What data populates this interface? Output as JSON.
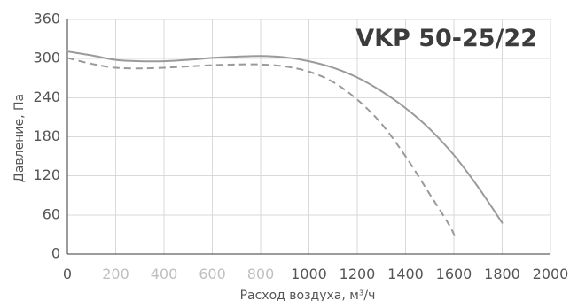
{
  "chart_data": {
    "type": "line",
    "title": "VKP 50-25/22",
    "xlabel": "Расход воздуха, м³/ч",
    "ylabel": "Давление, Па",
    "xlim": [
      0,
      2000
    ],
    "ylim": [
      0,
      360
    ],
    "xticks": [
      "0",
      "200",
      "400",
      "600",
      "800",
      "1000",
      "1200",
      "1400",
      "1600",
      "1800",
      "2000"
    ],
    "yticks": [
      "0",
      "60",
      "120",
      "180",
      "240",
      "300",
      "360"
    ],
    "grid": true,
    "legend": "none",
    "series": [
      {
        "style": "solid",
        "color": "#9a9a9a",
        "points": [
          {
            "x": 0,
            "y": 311
          },
          {
            "x": 100,
            "y": 305
          },
          {
            "x": 200,
            "y": 298
          },
          {
            "x": 300,
            "y": 296
          },
          {
            "x": 400,
            "y": 296
          },
          {
            "x": 500,
            "y": 298
          },
          {
            "x": 600,
            "y": 301
          },
          {
            "x": 700,
            "y": 303
          },
          {
            "x": 800,
            "y": 304
          },
          {
            "x": 900,
            "y": 302
          },
          {
            "x": 1000,
            "y": 296
          },
          {
            "x": 1100,
            "y": 286
          },
          {
            "x": 1200,
            "y": 271
          },
          {
            "x": 1300,
            "y": 250
          },
          {
            "x": 1400,
            "y": 224
          },
          {
            "x": 1500,
            "y": 192
          },
          {
            "x": 1600,
            "y": 152
          },
          {
            "x": 1700,
            "y": 103
          },
          {
            "x": 1800,
            "y": 48
          }
        ]
      },
      {
        "style": "dashed",
        "color": "#9a9a9a",
        "points": [
          {
            "x": 0,
            "y": 301
          },
          {
            "x": 100,
            "y": 292
          },
          {
            "x": 200,
            "y": 286
          },
          {
            "x": 300,
            "y": 285
          },
          {
            "x": 400,
            "y": 286
          },
          {
            "x": 500,
            "y": 288
          },
          {
            "x": 600,
            "y": 290
          },
          {
            "x": 700,
            "y": 291
          },
          {
            "x": 800,
            "y": 291
          },
          {
            "x": 900,
            "y": 288
          },
          {
            "x": 1000,
            "y": 280
          },
          {
            "x": 1100,
            "y": 264
          },
          {
            "x": 1200,
            "y": 237
          },
          {
            "x": 1300,
            "y": 200
          },
          {
            "x": 1400,
            "y": 150
          },
          {
            "x": 1500,
            "y": 92
          },
          {
            "x": 1580,
            "y": 45
          },
          {
            "x": 1610,
            "y": 22
          }
        ]
      }
    ]
  }
}
